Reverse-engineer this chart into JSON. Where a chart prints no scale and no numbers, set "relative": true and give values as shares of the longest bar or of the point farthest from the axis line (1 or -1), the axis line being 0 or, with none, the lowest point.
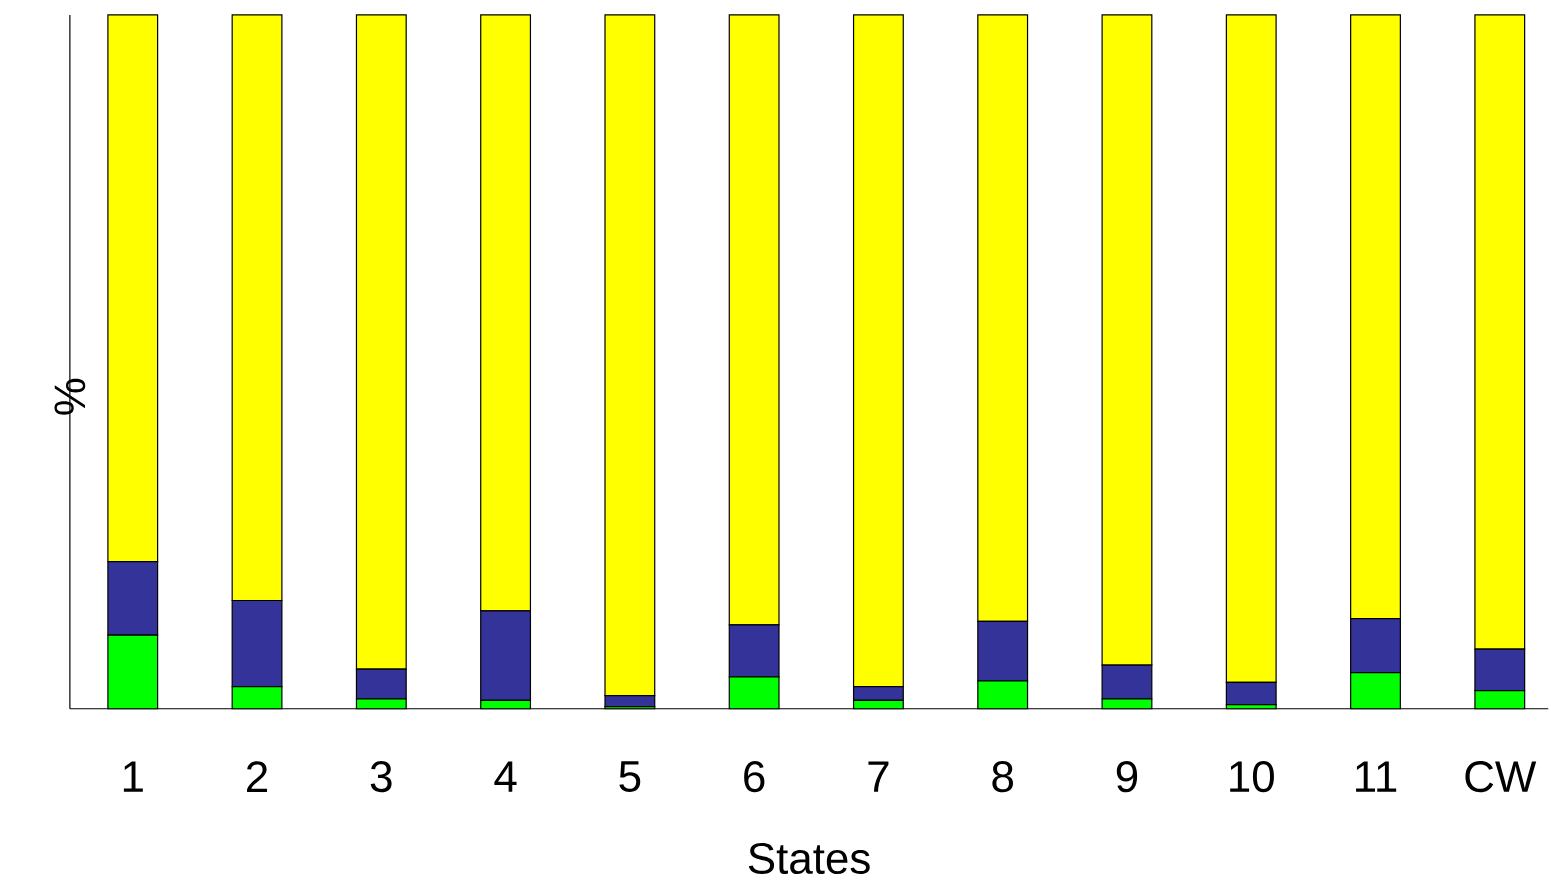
{
  "chart_data": {
    "type": "bar",
    "stacked": true,
    "relative": true,
    "xlabel": "States",
    "ylabel": "%",
    "categories": [
      "1",
      "2",
      "3",
      "4",
      "5",
      "6",
      "7",
      "8",
      "9",
      "10",
      "11",
      "CW"
    ],
    "series": [
      {
        "color": "#00ff00",
        "values": [
          0.106,
          0.032,
          0.014,
          0.012,
          0.003,
          0.046,
          0.012,
          0.04,
          0.014,
          0.006,
          0.052,
          0.026
        ]
      },
      {
        "color": "#333399",
        "values": [
          0.106,
          0.124,
          0.043,
          0.129,
          0.016,
          0.075,
          0.02,
          0.086,
          0.049,
          0.032,
          0.078,
          0.06
        ]
      },
      {
        "color": "#ffff00",
        "values": [
          0.788,
          0.844,
          0.943,
          0.859,
          0.981,
          0.879,
          0.968,
          0.874,
          0.937,
          0.962,
          0.87,
          0.914
        ]
      }
    ]
  }
}
